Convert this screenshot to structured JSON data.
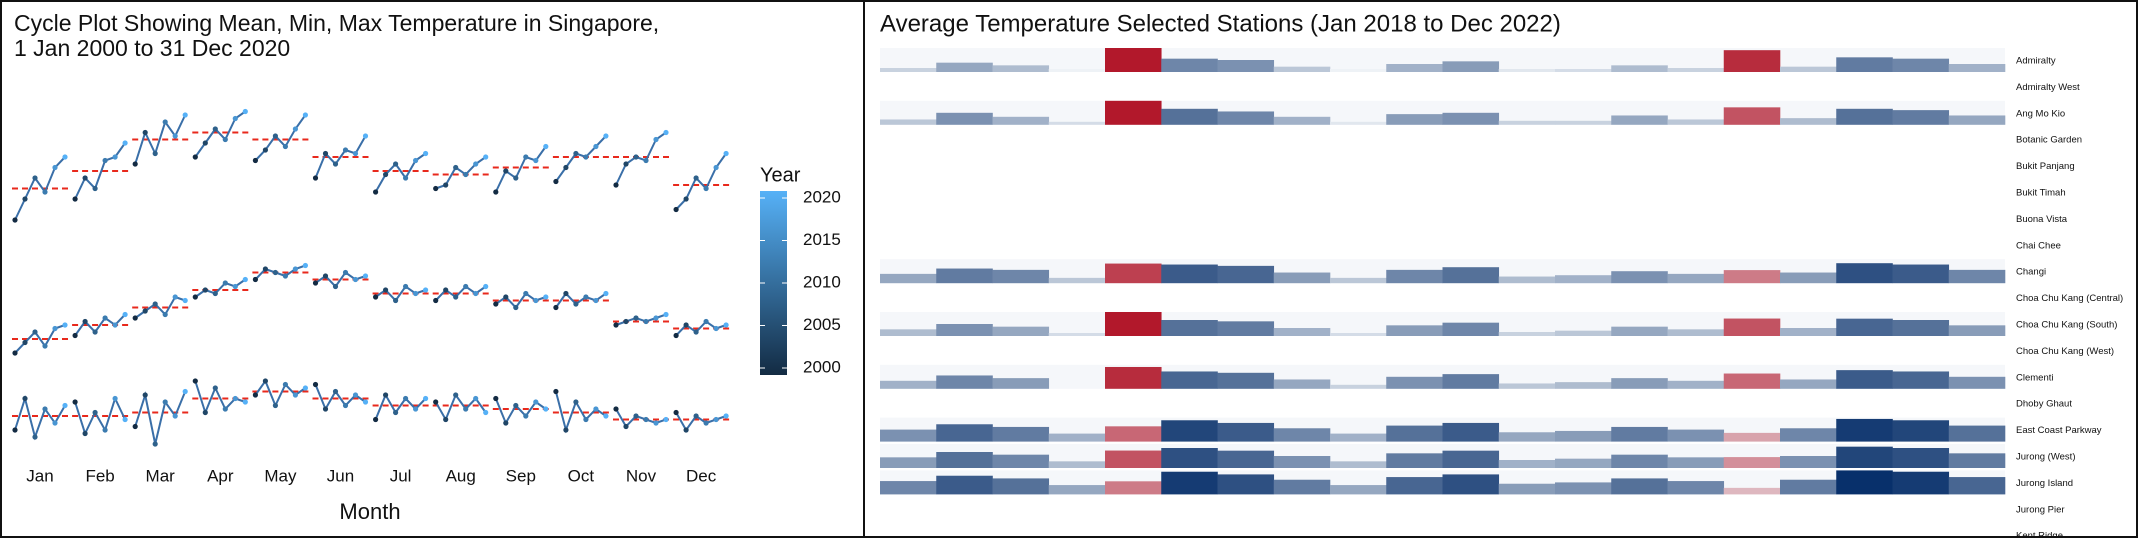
{
  "chart_data": [
    {
      "type": "cycle",
      "title": [
        "Cycle Plot Showing Mean, Min, Max Temperature in Singapore,",
        "1 Jan 2000 to 31 Dec 2020"
      ],
      "x_label": "Month",
      "categories": [
        "Jan",
        "Feb",
        "Mar",
        "Apr",
        "May",
        "Jun",
        "Jul",
        "Aug",
        "Sep",
        "Oct",
        "Nov",
        "Dec"
      ],
      "x": [
        2000,
        2004,
        2008,
        2012,
        2016,
        2020
      ],
      "ylim": [
        23,
        34
      ],
      "mean_color": "#e8291c",
      "series": [
        {
          "values": [
            [
              30.0,
              30.6,
              31.2,
              30.8,
              31.5,
              31.8
            ],
            [
              30.6,
              31.2,
              30.9,
              31.7,
              31.8,
              32.2
            ],
            [
              31.6,
              32.5,
              31.9,
              32.8,
              32.4,
              33.0
            ],
            [
              31.8,
              32.2,
              32.6,
              32.3,
              32.9,
              33.1
            ],
            [
              31.7,
              32.0,
              32.4,
              32.1,
              32.6,
              33.0
            ],
            [
              31.2,
              31.9,
              31.6,
              32.0,
              31.9,
              32.4
            ],
            [
              30.8,
              31.3,
              31.6,
              31.2,
              31.7,
              31.9
            ],
            [
              30.9,
              31.0,
              31.5,
              31.3,
              31.6,
              31.8
            ],
            [
              30.8,
              31.4,
              31.2,
              31.8,
              31.7,
              32.1
            ],
            [
              31.1,
              31.5,
              31.9,
              31.8,
              32.1,
              32.4
            ],
            [
              31.0,
              31.6,
              31.8,
              31.7,
              32.3,
              32.5
            ],
            [
              30.3,
              30.6,
              31.2,
              30.9,
              31.5,
              31.9
            ]
          ],
          "means": [
            30.9,
            31.4,
            32.3,
            32.5,
            32.3,
            31.8,
            31.4,
            31.3,
            31.5,
            31.8,
            31.8,
            31.0
          ]
        },
        {
          "values": [
            [
              26.2,
              26.5,
              26.8,
              26.4,
              26.9,
              27.0
            ],
            [
              26.7,
              27.1,
              26.8,
              27.2,
              27.0,
              27.3
            ],
            [
              27.2,
              27.4,
              27.6,
              27.3,
              27.8,
              27.7
            ],
            [
              27.8,
              28.0,
              27.9,
              28.2,
              28.1,
              28.3
            ],
            [
              28.3,
              28.6,
              28.5,
              28.4,
              28.6,
              28.7
            ],
            [
              28.2,
              28.4,
              28.1,
              28.5,
              28.3,
              28.4
            ],
            [
              27.8,
              28.0,
              27.7,
              28.1,
              27.9,
              28.0
            ],
            [
              27.7,
              28.0,
              27.8,
              28.1,
              27.9,
              28.1
            ],
            [
              27.6,
              27.8,
              27.5,
              27.9,
              27.7,
              27.8
            ],
            [
              27.5,
              27.9,
              27.6,
              27.8,
              27.7,
              27.9
            ],
            [
              27.0,
              27.1,
              27.2,
              27.1,
              27.2,
              27.3
            ],
            [
              26.7,
              27.0,
              26.8,
              27.1,
              26.9,
              27.0
            ]
          ],
          "means": [
            26.6,
            27.0,
            27.5,
            28.0,
            28.5,
            28.3,
            27.9,
            27.9,
            27.7,
            27.7,
            27.1,
            26.9
          ]
        },
        {
          "values": [
            [
              24.0,
              24.9,
              23.8,
              24.6,
              24.2,
              24.7
            ],
            [
              24.8,
              23.9,
              24.5,
              24.0,
              24.9,
              24.3
            ],
            [
              24.1,
              25.0,
              23.6,
              24.8,
              24.4,
              25.1
            ],
            [
              25.4,
              24.5,
              25.2,
              24.6,
              24.9,
              24.8
            ],
            [
              25.0,
              25.4,
              24.7,
              25.3,
              25.0,
              25.2
            ],
            [
              25.3,
              24.6,
              25.1,
              24.7,
              25.0,
              24.8
            ],
            [
              24.3,
              25.0,
              24.5,
              24.9,
              24.6,
              24.9
            ],
            [
              24.8,
              24.3,
              25.0,
              24.6,
              24.9,
              24.5
            ],
            [
              24.9,
              24.2,
              24.7,
              24.4,
              24.8,
              24.6
            ],
            [
              25.1,
              24.0,
              24.8,
              24.3,
              24.6,
              24.4
            ],
            [
              24.6,
              24.1,
              24.4,
              24.3,
              24.2,
              24.3
            ],
            [
              24.5,
              24.0,
              24.4,
              24.2,
              24.3,
              24.4
            ]
          ],
          "means": [
            24.4,
            24.4,
            24.5,
            24.9,
            25.1,
            24.9,
            24.7,
            24.7,
            24.6,
            24.5,
            24.3,
            24.3
          ]
        }
      ],
      "legend": {
        "title": "Year",
        "lim": [
          2000,
          2020
        ],
        "ticks": [
          2000,
          2005,
          2010,
          2015,
          2020
        ],
        "colors": [
          "#132b43",
          "#56b1f7"
        ]
      }
    },
    {
      "type": "heatstrip",
      "title": "Average Temperature Selected Stations (Jan 2018 to Dec 2022)",
      "color_scale": {
        "domain": [
          26.5,
          27.6,
          29.4
        ],
        "colors": [
          "#b2182b",
          "#eef2f6",
          "#08306b"
        ]
      },
      "rows": [
        {
          "label": "Admiralty",
          "values": [
            27.9,
            28.3,
            28.1,
            27.6,
            26.3,
            28.6,
            28.5,
            28.0,
            27.6,
            28.2,
            28.4,
            27.7,
            27.8,
            28.1,
            27.9,
            26.6,
            28.0,
            28.7,
            28.6,
            28.2
          ]
        },
        {
          "label": "Admiralty West"
        },
        {
          "label": "Ang Mo Kio",
          "values": [
            28.0,
            28.5,
            28.2,
            27.8,
            26.5,
            28.8,
            28.6,
            28.2,
            27.7,
            28.4,
            28.5,
            27.9,
            27.9,
            28.3,
            28.0,
            26.8,
            28.1,
            28.8,
            28.7,
            28.3
          ]
        },
        {
          "label": "Botanic Garden"
        },
        {
          "label": "Bukit Panjang"
        },
        {
          "label": "Bukit Timah"
        },
        {
          "label": "Buona Vista"
        },
        {
          "label": "Chai Chee"
        },
        {
          "label": "Changi",
          "values": [
            28.3,
            28.7,
            28.6,
            28.0,
            26.7,
            29.0,
            28.9,
            28.4,
            28.0,
            28.6,
            28.8,
            28.1,
            28.2,
            28.5,
            28.3,
            27.0,
            28.4,
            29.1,
            29.0,
            28.6
          ]
        },
        {
          "label": "Choa Chu Kang (Central)"
        },
        {
          "label": "Choa Chu Kang (South)",
          "values": [
            28.1,
            28.5,
            28.3,
            27.8,
            26.5,
            28.8,
            28.7,
            28.2,
            27.8,
            28.4,
            28.6,
            27.9,
            28.0,
            28.3,
            28.1,
            26.8,
            28.2,
            28.9,
            28.8,
            28.4
          ]
        },
        {
          "label": "Choa Chu Kang (West)"
        },
        {
          "label": "Clementi",
          "values": [
            28.2,
            28.6,
            28.4,
            null,
            26.6,
            28.9,
            28.8,
            28.3,
            27.9,
            28.5,
            28.7,
            28.0,
            28.1,
            28.4,
            28.2,
            26.9,
            28.3,
            29.0,
            28.9,
            28.5
          ]
        },
        {
          "label": "Dhoby Ghaut"
        },
        {
          "label": "East Coast Parkway",
          "values": [
            28.5,
            28.9,
            28.7,
            28.2,
            26.9,
            29.2,
            29.0,
            28.6,
            28.2,
            28.8,
            29.0,
            28.3,
            28.4,
            28.7,
            28.5,
            27.2,
            28.6,
            29.3,
            29.2,
            28.8
          ]
        },
        {
          "label": "Jurong (West)",
          "values": [
            28.4,
            28.8,
            28.6,
            28.1,
            26.8,
            29.1,
            28.9,
            28.5,
            28.1,
            28.7,
            28.9,
            28.2,
            28.3,
            28.6,
            28.4,
            27.1,
            28.5,
            29.2,
            29.1,
            28.7
          ]
        },
        {
          "label": "Jurong Island",
          "values": [
            28.6,
            29.0,
            28.8,
            28.3,
            27.0,
            29.3,
            29.1,
            28.7,
            28.3,
            28.9,
            29.1,
            28.4,
            28.5,
            28.8,
            28.6,
            27.3,
            28.7,
            29.4,
            29.3,
            28.9
          ]
        },
        {
          "label": "Jurong Pier"
        },
        {
          "label": "Kent Ridge"
        }
      ]
    }
  ]
}
